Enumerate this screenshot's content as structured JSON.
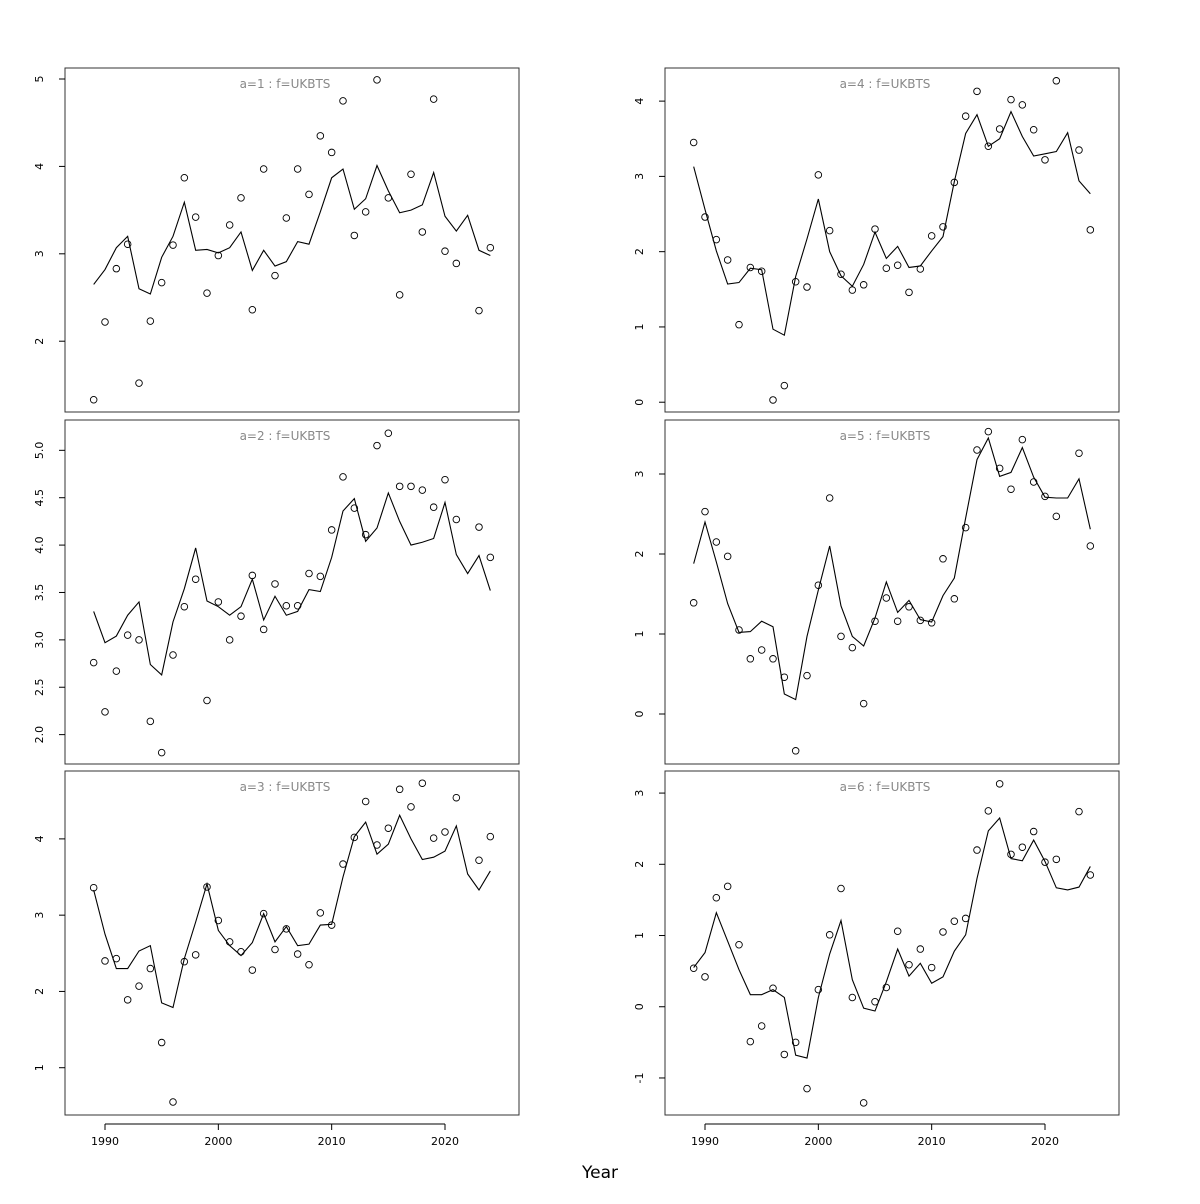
{
  "xlabel": "Year",
  "chart_data": [
    {
      "type": "line",
      "title": "a=1 : f=UKBTS",
      "x": [
        1989,
        1990,
        1991,
        1992,
        1993,
        1994,
        1995,
        1996,
        1997,
        1998,
        1999,
        2000,
        2001,
        2002,
        2003,
        2004,
        2005,
        2006,
        2007,
        2008,
        2009,
        2010,
        2011,
        2012,
        2013,
        2014,
        2015,
        2016,
        2017,
        2018,
        2019,
        2020,
        2021,
        2022,
        2023,
        2024
      ],
      "xlim": [
        1986.47,
        2026.53
      ],
      "ylim": [
        1.19,
        5.126
      ],
      "yticks": [
        2,
        3,
        4,
        5
      ],
      "series": [
        {
          "style": "line",
          "color": "#000000",
          "values": [
            2.65,
            2.82,
            3.07,
            3.2,
            2.6,
            2.54,
            2.96,
            3.2,
            3.59,
            3.04,
            3.05,
            3.01,
            3.07,
            3.25,
            2.81,
            3.04,
            2.86,
            2.91,
            3.14,
            3.11,
            3.48,
            3.87,
            3.97,
            3.51,
            3.63,
            4.01,
            3.72,
            3.47,
            3.5,
            3.56,
            3.93,
            3.43,
            3.26,
            3.44,
            3.04,
            2.98
          ]
        },
        {
          "style": "points",
          "color": "#000000",
          "values": [
            1.33,
            2.22,
            2.83,
            3.11,
            1.52,
            2.23,
            2.67,
            3.1,
            3.87,
            3.42,
            2.55,
            2.98,
            3.33,
            3.64,
            2.36,
            3.97,
            2.75,
            3.41,
            3.97,
            3.68,
            4.35,
            4.16,
            4.75,
            3.21,
            3.48,
            4.99,
            3.64,
            2.53,
            3.91,
            3.25,
            4.77,
            3.03,
            2.89,
            null,
            2.35,
            3.07
          ]
        }
      ]
    },
    {
      "type": "line",
      "title": "a=2 : f=UKBTS",
      "x": [
        1989,
        1990,
        1991,
        1992,
        1993,
        1994,
        1995,
        1996,
        1997,
        1998,
        1999,
        2000,
        2001,
        2002,
        2003,
        2004,
        2005,
        2006,
        2007,
        2008,
        2009,
        2010,
        2011,
        2012,
        2013,
        2014,
        2015,
        2016,
        2017,
        2018,
        2019,
        2020,
        2021,
        2022,
        2023,
        2024
      ],
      "xlim": [
        1986.47,
        2026.53
      ],
      "ylim": [
        1.69,
        5.32
      ],
      "yticks": [
        {
          "value": 2,
          "label": "2.0"
        },
        2.5,
        {
          "value": 3,
          "label": "3.0"
        },
        3.5,
        {
          "value": 4,
          "label": "4.0"
        },
        4.5,
        {
          "value": 5,
          "label": "5.0"
        }
      ],
      "series": [
        {
          "style": "line",
          "color": "#000000",
          "values": [
            3.3,
            2.97,
            3.04,
            3.26,
            3.4,
            2.74,
            2.63,
            3.19,
            3.54,
            3.97,
            3.41,
            3.35,
            3.26,
            3.35,
            3.64,
            3.21,
            3.46,
            3.26,
            3.3,
            3.53,
            3.51,
            3.87,
            4.36,
            4.49,
            4.04,
            4.18,
            4.55,
            4.25,
            4.0,
            4.03,
            4.07,
            4.45,
            3.9,
            3.7,
            3.89,
            3.52
          ]
        },
        {
          "style": "points",
          "color": "#000000",
          "values": [
            2.76,
            2.24,
            2.67,
            3.05,
            3.0,
            2.14,
            1.81,
            2.84,
            3.35,
            3.64,
            2.36,
            3.4,
            3.0,
            3.25,
            3.68,
            3.11,
            3.59,
            3.36,
            3.36,
            3.7,
            3.67,
            4.16,
            4.72,
            4.39,
            4.11,
            5.05,
            5.18,
            4.62,
            4.62,
            4.58,
            4.4,
            4.69,
            4.27,
            null,
            4.19,
            3.87
          ]
        }
      ]
    },
    {
      "type": "line",
      "title": "a=3 : f=UKBTS",
      "x": [
        1989,
        1990,
        1991,
        1992,
        1993,
        1994,
        1995,
        1996,
        1997,
        1998,
        1999,
        2000,
        2001,
        2002,
        2003,
        2004,
        2005,
        2006,
        2007,
        2008,
        2009,
        2010,
        2011,
        2012,
        2013,
        2014,
        2015,
        2016,
        2017,
        2018,
        2019,
        2020,
        2021,
        2022,
        2023,
        2024
      ],
      "xlim": [
        1986.47,
        2026.53
      ],
      "xticks": [
        1990,
        2000,
        2010,
        2020
      ],
      "ylim": [
        0.38,
        4.89
      ],
      "yticks": [
        1,
        2,
        3,
        4
      ],
      "series": [
        {
          "style": "line",
          "color": "#000000",
          "values": [
            3.33,
            2.75,
            2.3,
            2.3,
            2.53,
            2.6,
            1.85,
            1.79,
            2.43,
            2.91,
            3.41,
            2.8,
            2.6,
            2.47,
            2.64,
            3.02,
            2.65,
            2.85,
            2.6,
            2.62,
            2.87,
            2.88,
            3.5,
            4.03,
            4.22,
            3.8,
            3.93,
            4.31,
            4.0,
            3.73,
            3.76,
            3.84,
            4.17,
            3.54,
            3.33,
            3.58
          ]
        },
        {
          "style": "points",
          "color": "#000000",
          "values": [
            3.36,
            2.4,
            2.43,
            1.89,
            2.07,
            2.3,
            1.33,
            0.55,
            2.39,
            2.48,
            3.37,
            2.93,
            2.65,
            2.52,
            2.28,
            3.02,
            2.55,
            2.82,
            2.49,
            2.35,
            3.03,
            2.87,
            3.67,
            4.02,
            4.49,
            3.92,
            4.14,
            4.65,
            4.42,
            4.73,
            4.01,
            4.09,
            4.54,
            null,
            3.72,
            4.03
          ]
        }
      ]
    },
    {
      "type": "line",
      "title": "a=4 : f=UKBTS",
      "x": [
        1989,
        1990,
        1991,
        1992,
        1993,
        1994,
        1995,
        1996,
        1997,
        1998,
        1999,
        2000,
        2001,
        2002,
        2003,
        2004,
        2005,
        2006,
        2007,
        2008,
        2009,
        2010,
        2011,
        2012,
        2013,
        2014,
        2015,
        2016,
        2017,
        2018,
        2019,
        2020,
        2021,
        2022,
        2023,
        2024
      ],
      "xlim": [
        1986.47,
        2026.53
      ],
      "ylim": [
        -0.13,
        4.44
      ],
      "yticks": [
        0,
        1,
        2,
        3,
        4
      ],
      "series": [
        {
          "style": "line",
          "color": "#000000",
          "values": [
            3.13,
            2.56,
            2.01,
            1.57,
            1.59,
            1.78,
            1.76,
            0.97,
            0.89,
            1.67,
            2.17,
            2.7,
            2.0,
            1.68,
            1.54,
            1.83,
            2.26,
            1.91,
            2.07,
            1.79,
            1.81,
            2.01,
            2.2,
            2.93,
            3.57,
            3.82,
            3.4,
            3.5,
            3.86,
            3.53,
            3.27,
            3.3,
            3.33,
            3.58,
            2.94,
            2.77
          ]
        },
        {
          "style": "points",
          "color": "#000000",
          "values": [
            3.45,
            2.46,
            2.16,
            1.89,
            1.03,
            1.79,
            1.74,
            0.03,
            0.22,
            1.6,
            1.53,
            3.02,
            2.28,
            1.7,
            1.49,
            1.56,
            2.3,
            1.78,
            1.82,
            1.46,
            1.77,
            2.21,
            2.33,
            2.92,
            3.8,
            4.13,
            3.4,
            3.63,
            4.02,
            3.95,
            3.62,
            3.22,
            4.27,
            null,
            3.35,
            2.29
          ]
        }
      ]
    },
    {
      "type": "line",
      "title": "a=5 : f=UKBTS",
      "x": [
        1989,
        1990,
        1991,
        1992,
        1993,
        1994,
        1995,
        1996,
        1997,
        1998,
        1999,
        2000,
        2001,
        2002,
        2003,
        2004,
        2005,
        2006,
        2007,
        2008,
        2009,
        2010,
        2011,
        2012,
        2013,
        2014,
        2015,
        2016,
        2017,
        2018,
        2019,
        2020,
        2021,
        2022,
        2023,
        2024
      ],
      "xlim": [
        1986.47,
        2026.53
      ],
      "ylim": [
        -0.625,
        3.675
      ],
      "yticks": [
        0,
        1,
        2,
        3
      ],
      "series": [
        {
          "style": "line",
          "color": "#000000",
          "values": [
            1.88,
            2.4,
            1.9,
            1.38,
            1.02,
            1.03,
            1.16,
            1.09,
            0.25,
            0.18,
            0.97,
            1.55,
            2.1,
            1.35,
            0.97,
            0.85,
            1.2,
            1.65,
            1.27,
            1.42,
            1.18,
            1.15,
            1.48,
            1.7,
            2.45,
            3.18,
            3.45,
            2.97,
            3.02,
            3.33,
            2.96,
            2.71,
            2.7,
            2.7,
            2.94,
            2.31
          ]
        },
        {
          "style": "points",
          "color": "#000000",
          "values": [
            1.39,
            2.53,
            2.15,
            1.97,
            1.05,
            0.69,
            0.8,
            0.69,
            0.46,
            -0.46,
            0.48,
            1.61,
            2.7,
            0.97,
            0.83,
            0.13,
            1.16,
            1.45,
            1.16,
            1.34,
            1.17,
            1.14,
            1.94,
            1.44,
            2.33,
            3.3,
            3.53,
            3.07,
            2.81,
            3.43,
            2.9,
            2.72,
            2.47,
            null,
            3.26,
            2.1
          ]
        }
      ]
    },
    {
      "type": "line",
      "title": "a=6 : f=UKBTS",
      "x": [
        1989,
        1990,
        1991,
        1992,
        1993,
        1994,
        1995,
        1996,
        1997,
        1998,
        1999,
        2000,
        2001,
        2002,
        2003,
        2004,
        2005,
        2006,
        2007,
        2008,
        2009,
        2010,
        2011,
        2012,
        2013,
        2014,
        2015,
        2016,
        2017,
        2018,
        2019,
        2020,
        2021,
        2022,
        2023,
        2024
      ],
      "xlim": [
        1986.47,
        2026.53
      ],
      "xticks": [
        1990,
        2000,
        2010,
        2020
      ],
      "ylim": [
        -1.52,
        3.31
      ],
      "yticks": [
        -1,
        0,
        1,
        2,
        3
      ],
      "series": [
        {
          "style": "line",
          "color": "#000000",
          "values": [
            0.55,
            0.76,
            1.32,
            0.92,
            0.52,
            0.17,
            0.17,
            0.24,
            0.13,
            -0.68,
            -0.72,
            0.13,
            0.74,
            1.21,
            0.38,
            -0.02,
            -0.06,
            0.35,
            0.81,
            0.43,
            0.61,
            0.33,
            0.42,
            0.78,
            1.01,
            1.8,
            2.47,
            2.65,
            2.08,
            2.05,
            2.34,
            2.04,
            1.67,
            1.64,
            1.68,
            1.97
          ]
        },
        {
          "style": "points",
          "color": "#000000",
          "values": [
            0.54,
            0.42,
            1.53,
            1.69,
            0.87,
            -0.49,
            -0.27,
            0.26,
            -0.67,
            -0.5,
            -1.15,
            0.24,
            1.01,
            1.66,
            0.13,
            -1.35,
            0.07,
            0.27,
            1.06,
            0.59,
            0.81,
            0.55,
            1.05,
            1.2,
            1.24,
            2.2,
            2.75,
            3.13,
            2.14,
            2.24,
            2.46,
            2.03,
            2.07,
            null,
            2.74,
            1.85
          ]
        }
      ]
    }
  ]
}
